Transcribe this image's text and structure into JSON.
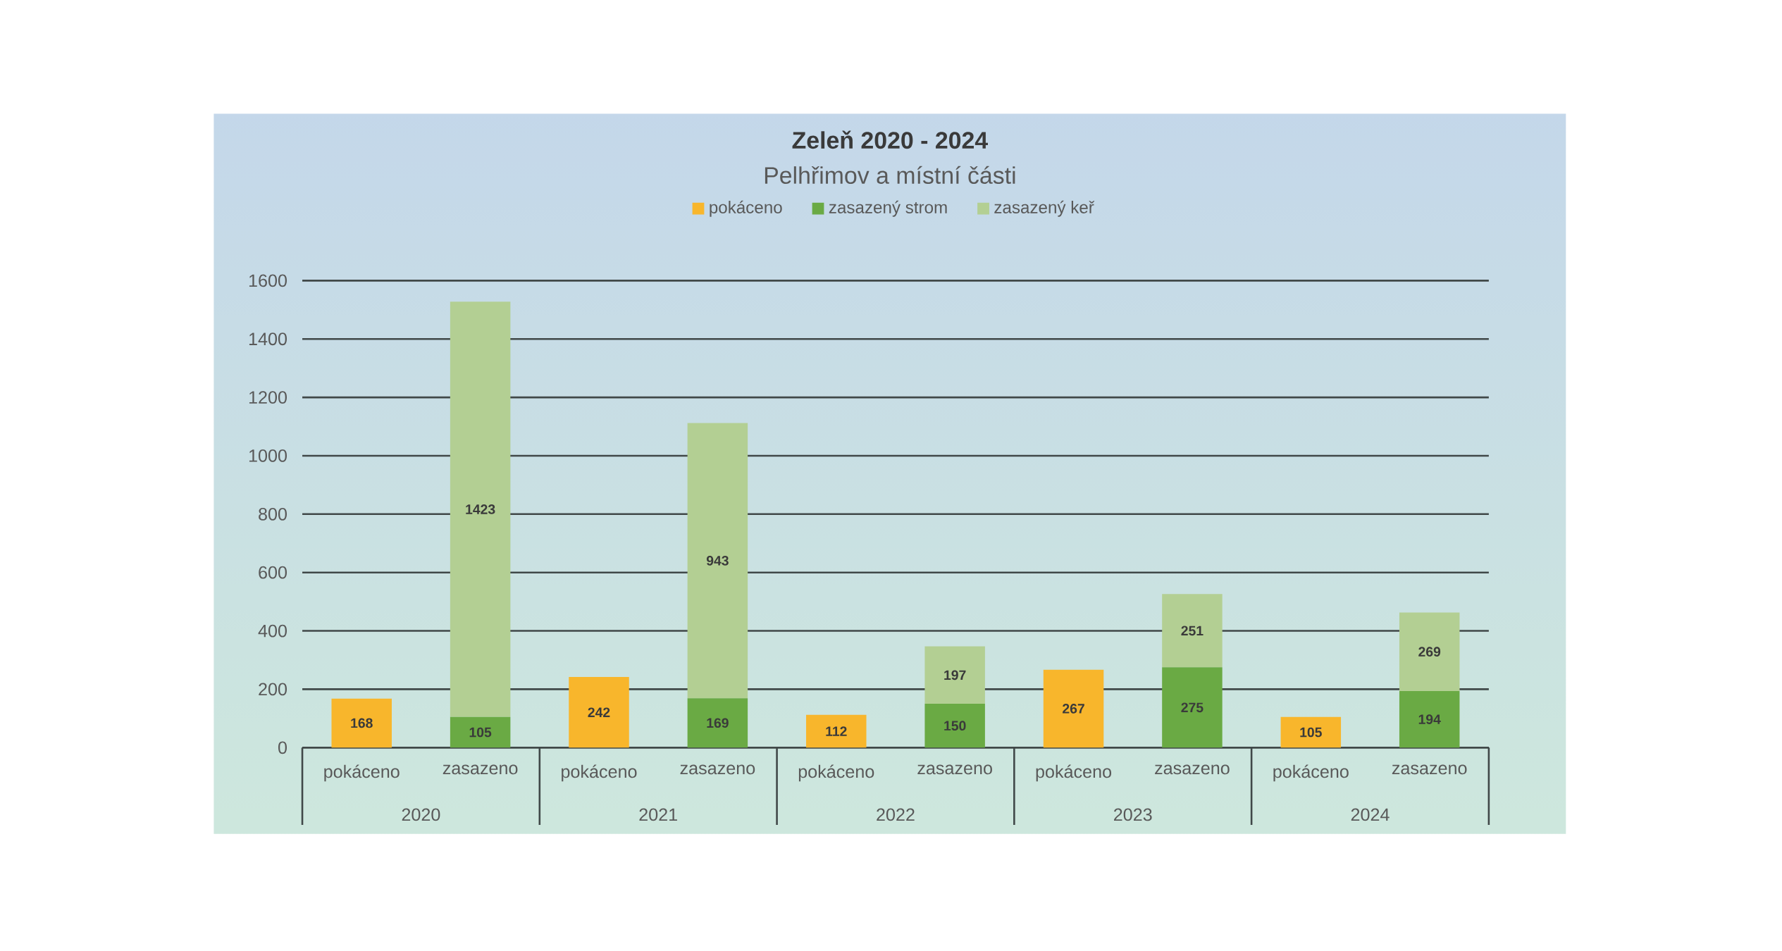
{
  "chart_data": {
    "type": "bar",
    "title": "Zeleň 2020 - 2024",
    "subtitle": "Pelhřimov a místní části",
    "categories": [
      "pokáceno",
      "zasazeno",
      "pokáceno",
      "zasazeno",
      "pokáceno",
      "zasazeno",
      "pokáceno",
      "zasazeno",
      "pokáceno",
      "zasazeno"
    ],
    "stacked": true,
    "series": [
      {
        "name": "pokáceno",
        "color": "#f8b62c",
        "values": [
          168,
          null,
          242,
          null,
          112,
          null,
          267,
          null,
          105,
          null
        ]
      },
      {
        "name": "zasazený strom",
        "color": "#6aaa44",
        "values": [
          null,
          105,
          null,
          169,
          null,
          150,
          null,
          275,
          null,
          194
        ]
      },
      {
        "name": "zasazený keř",
        "color": "#b3cf93",
        "values": [
          null,
          1423,
          null,
          943,
          null,
          197,
          null,
          251,
          null,
          269
        ]
      }
    ],
    "ylim": [
      0,
      1600
    ],
    "yticks": [
      0,
      200,
      400,
      600,
      800,
      1000,
      1200,
      1400,
      1600
    ],
    "grid": "y",
    "legend": "top",
    "data_labels": true,
    "annotations": [
      "2020",
      "2021",
      "2022",
      "2023",
      "2024"
    ]
  }
}
